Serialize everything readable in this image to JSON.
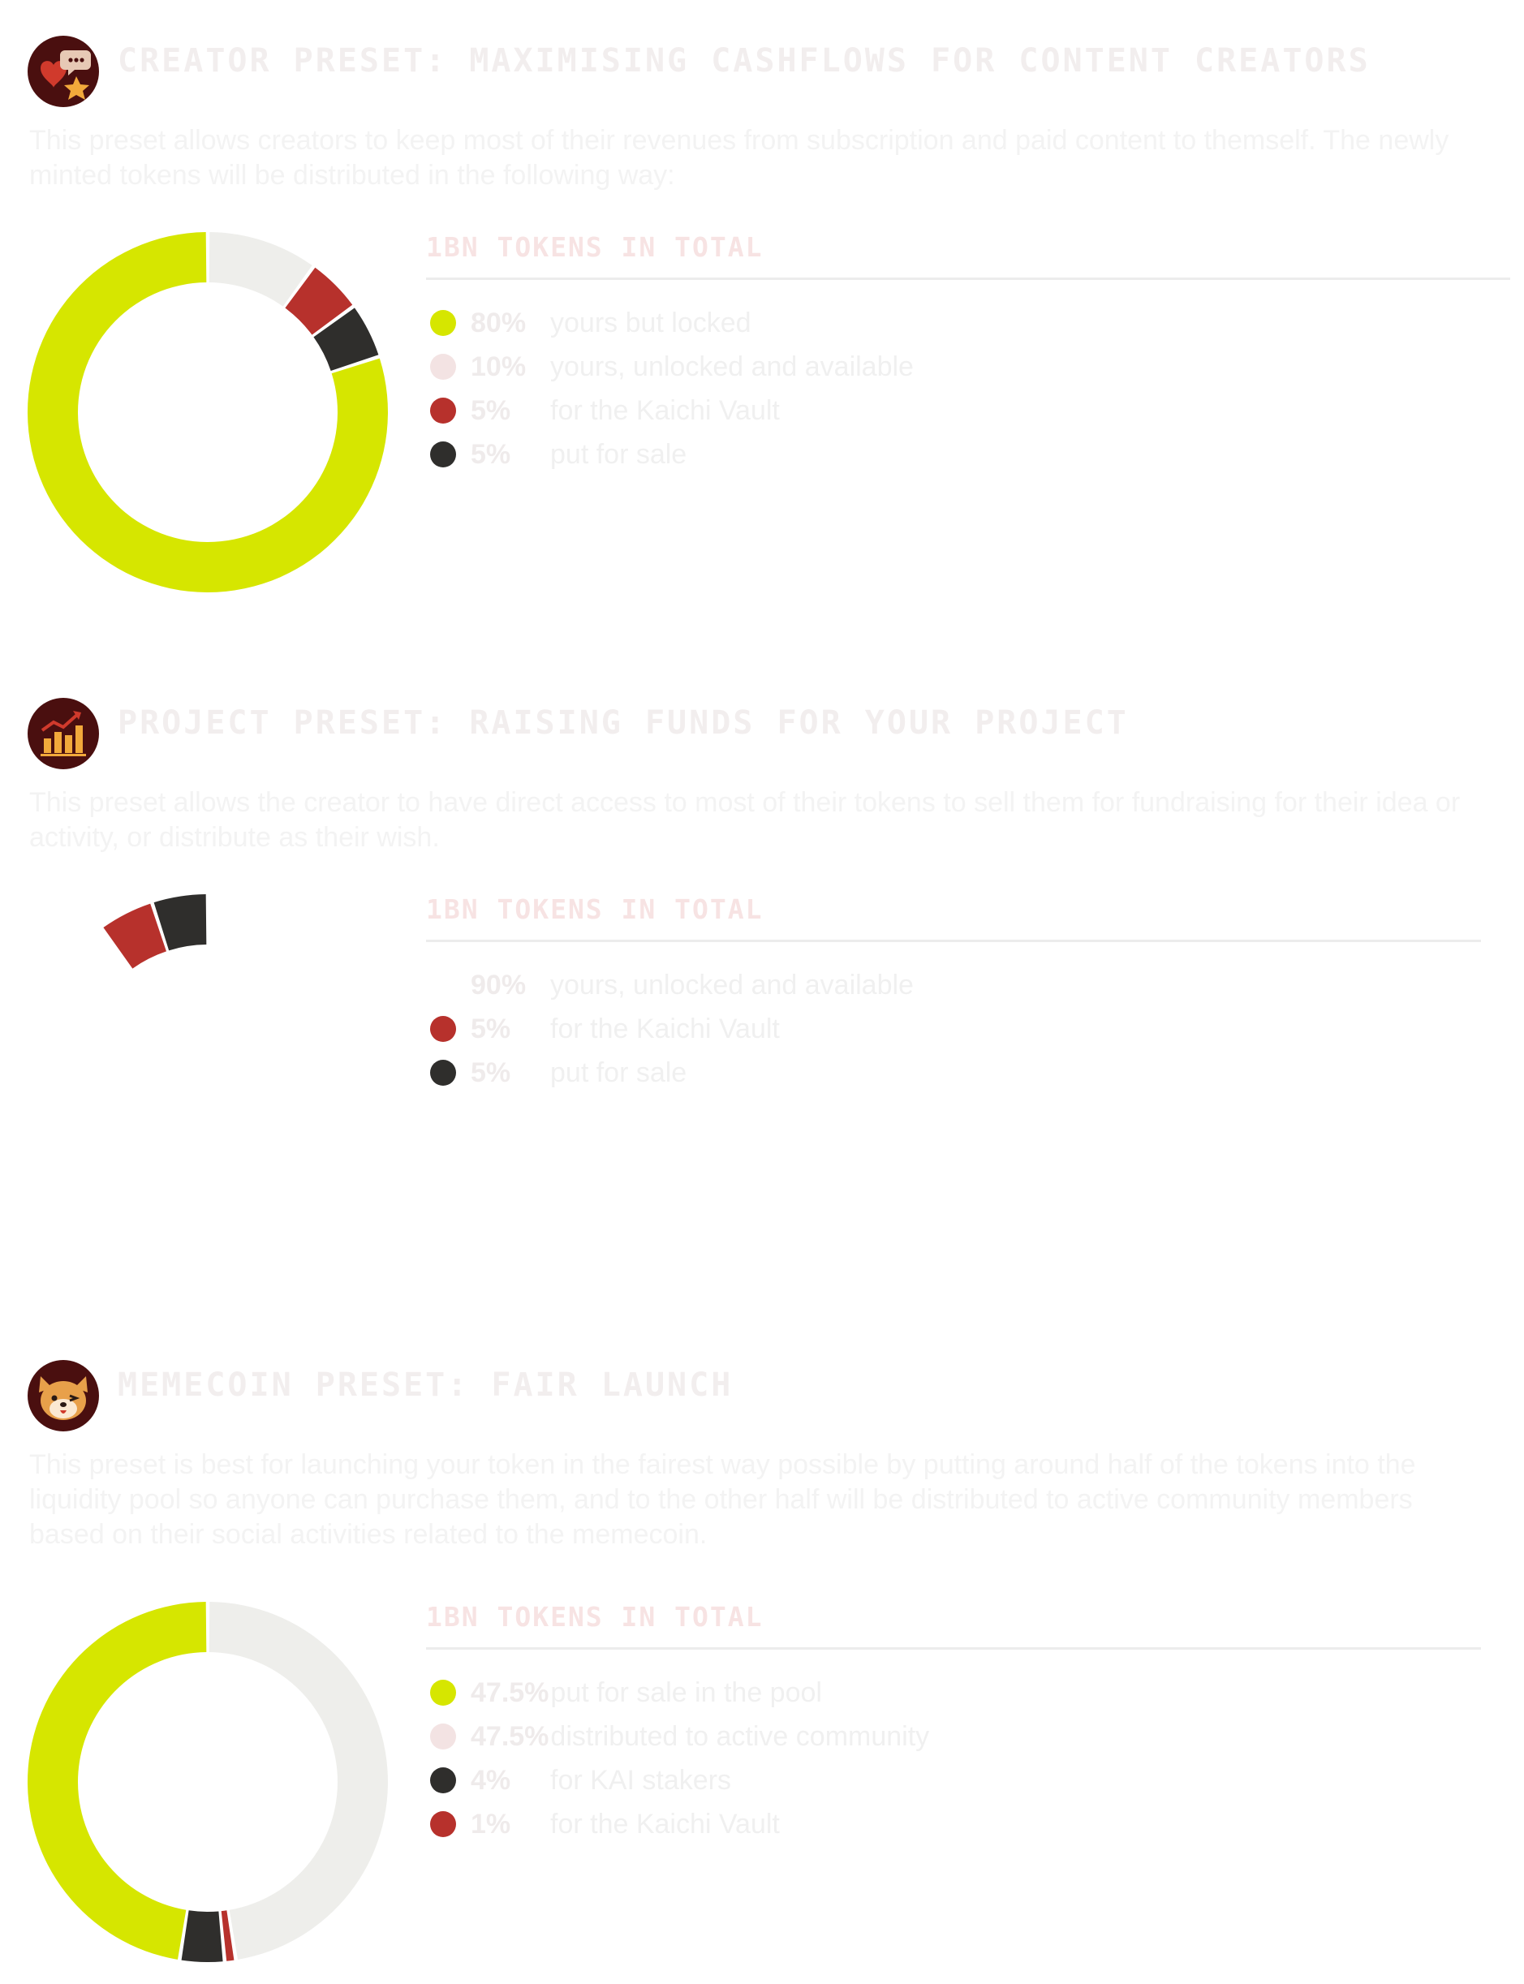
{
  "palette": {
    "lime": "#d6e600",
    "light_gray": "#eeeeeb",
    "pale_pink": "#f3e3e3",
    "red": "#b7312c",
    "dark": "#2f2e2c",
    "maroon": "#4a0f0f"
  },
  "sections": [
    {
      "icon": "creator-preset-icon",
      "title": "CREATOR PRESET: MAXIMISING CASHFLOWS FOR CONTENT CREATORS",
      "description": "This preset allows creators to keep most of their revenues from subscription and paid content to themself. The newly minted tokens will be distributed in the following way:",
      "legend_heading": "1BN TOKENS IN TOTAL",
      "items": [
        {
          "pct": "80%",
          "label": "yours but locked",
          "color": "#d6e600"
        },
        {
          "pct": "10%",
          "label": "yours, unlocked and available",
          "color": "#f3e3e3"
        },
        {
          "pct": "5%",
          "label": "for the Kaichi Vault",
          "color": "#b7312c"
        },
        {
          "pct": "5%",
          "label": "put for sale",
          "color": "#2f2e2c"
        }
      ]
    },
    {
      "icon": "project-preset-chart-icon",
      "title": "PROJECT PRESET: RAISING FUNDS FOR YOUR PROJECT",
      "description": "This preset allows the creator to have direct access to most of their tokens to sell them for fundraising for their idea or activity, or distribute as their wish.",
      "legend_heading": "1BN TOKENS IN TOTAL",
      "items": [
        {
          "pct": "90%",
          "label": "yours, unlocked and available",
          "color": "#ffffff"
        },
        {
          "pct": "5%",
          "label": "for the Kaichi Vault",
          "color": "#b7312c"
        },
        {
          "pct": "5%",
          "label": "put for sale",
          "color": "#2f2e2c"
        }
      ]
    },
    {
      "icon": "memecoin-shiba-icon",
      "title": "MEMECOIN PRESET: FAIR LAUNCH",
      "description": "This preset is best for launching your token in the fairest way possible by putting around half of the tokens into the liquidity pool so anyone can purchase them, and to the other half will be distributed to active community members based on their social activities related to the memecoin.",
      "legend_heading": "1BN TOKENS IN TOTAL",
      "items": [
        {
          "pct": "47.5%",
          "label": "put for sale in the pool",
          "color": "#d6e600"
        },
        {
          "pct": "47.5%",
          "label": "distributed to active community",
          "color": "#f3e3e3"
        },
        {
          "pct": "4%",
          "label": "for KAI stakers",
          "color": "#2f2e2c"
        },
        {
          "pct": "1%",
          "label": "for the Kaichi Vault",
          "color": "#b7312c"
        }
      ]
    }
  ],
  "chart_data": [
    {
      "type": "pie",
      "title": "1BN TOKENS IN TOTAL",
      "categories": [
        "yours but locked",
        "yours, unlocked and available",
        "for the Kaichi Vault",
        "put for sale"
      ],
      "values": [
        80,
        10,
        5,
        5
      ],
      "colors": [
        "#d6e600",
        "#eeeeeb",
        "#b7312c",
        "#2f2e2c"
      ],
      "drawn_order": [
        1,
        2,
        3,
        0
      ],
      "legend": "right"
    },
    {
      "type": "pie",
      "title": "1BN TOKENS IN TOTAL",
      "categories": [
        "yours, unlocked and available",
        "for the Kaichi Vault",
        "put for sale"
      ],
      "values": [
        90,
        5,
        5
      ],
      "colors": [
        "#ffffff",
        "#b7312c",
        "#2f2e2c"
      ],
      "drawn_order": [
        0,
        1,
        2
      ],
      "legend": "right"
    },
    {
      "type": "pie",
      "title": "1BN TOKENS IN TOTAL",
      "categories": [
        "put for sale in the pool",
        "distributed to active community",
        "for KAI stakers",
        "for the Kaichi Vault"
      ],
      "values": [
        47.5,
        47.5,
        4,
        1
      ],
      "colors": [
        "#d6e600",
        "#eeeeeb",
        "#2f2e2c",
        "#b7312c"
      ],
      "drawn_order": [
        1,
        3,
        2,
        0
      ],
      "legend": "right"
    }
  ]
}
